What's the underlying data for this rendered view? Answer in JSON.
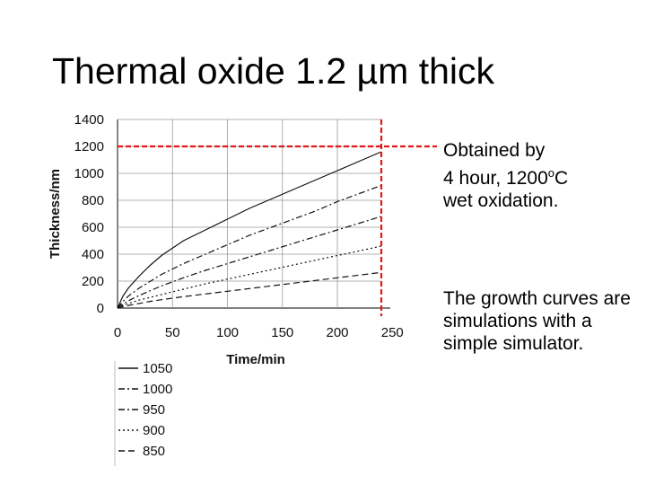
{
  "slide": {
    "title": "Thermal oxide 1.2 µm thick",
    "annotation_1": {
      "line1": "Obtained by",
      "line2_prefix": "4 hour, 1200",
      "line2_sup": "o",
      "line2_suffix": "C",
      "line3": "wet oxidation."
    },
    "annotation_2": "The growth curves are simulations with a simple simulator."
  },
  "chart_data": {
    "type": "line",
    "xlabel": "Time/min",
    "ylabel": "Thickness/nm",
    "xlim": [
      0,
      240
    ],
    "ylim": [
      0,
      1400
    ],
    "xticks": [
      0,
      50,
      100,
      150,
      200,
      250
    ],
    "yticks": [
      0,
      200,
      400,
      600,
      800,
      1000,
      1200,
      1400
    ],
    "grid": true,
    "legend_position": "below plot, left",
    "series": [
      {
        "name": "1050",
        "dash": "solid",
        "x": [
          0,
          5,
          10,
          20,
          30,
          40,
          60,
          80,
          100,
          120,
          140,
          160,
          180,
          200,
          220,
          240
        ],
        "y": [
          0,
          90,
          150,
          240,
          320,
          390,
          500,
          580,
          660,
          740,
          810,
          880,
          950,
          1020,
          1090,
          1160
        ]
      },
      {
        "name": "1000",
        "dash": "dash-dot",
        "x": [
          0,
          5,
          10,
          20,
          30,
          40,
          60,
          80,
          100,
          120,
          140,
          160,
          180,
          200,
          220,
          240
        ],
        "y": [
          0,
          50,
          90,
          150,
          200,
          250,
          330,
          400,
          470,
          540,
          600,
          660,
          720,
          790,
          850,
          910
        ]
      },
      {
        "name": "950",
        "dash": "dash-dot",
        "x": [
          0,
          5,
          10,
          20,
          30,
          40,
          60,
          80,
          100,
          120,
          140,
          160,
          180,
          200,
          220,
          240
        ],
        "y": [
          0,
          30,
          55,
          95,
          130,
          165,
          225,
          280,
          330,
          380,
          430,
          480,
          530,
          580,
          630,
          680
        ]
      },
      {
        "name": "900",
        "dash": "dotted",
        "x": [
          0,
          5,
          10,
          20,
          30,
          40,
          60,
          80,
          100,
          120,
          140,
          160,
          180,
          200,
          220,
          240
        ],
        "y": [
          0,
          20,
          35,
          60,
          80,
          100,
          140,
          180,
          215,
          250,
          285,
          320,
          355,
          390,
          425,
          460
        ]
      },
      {
        "name": "850",
        "dash": "dashed",
        "x": [
          0,
          5,
          10,
          20,
          30,
          40,
          60,
          80,
          100,
          120,
          140,
          160,
          180,
          200,
          220,
          240
        ],
        "y": [
          0,
          10,
          20,
          35,
          50,
          62,
          85,
          105,
          125,
          145,
          165,
          185,
          205,
          225,
          245,
          265
        ]
      }
    ],
    "annotations": [
      {
        "kind": "horizontal-reference-line",
        "color": "#e0191b",
        "y": 1200
      },
      {
        "kind": "vertical-reference-line",
        "color": "#e0191b",
        "x": 240
      }
    ]
  }
}
